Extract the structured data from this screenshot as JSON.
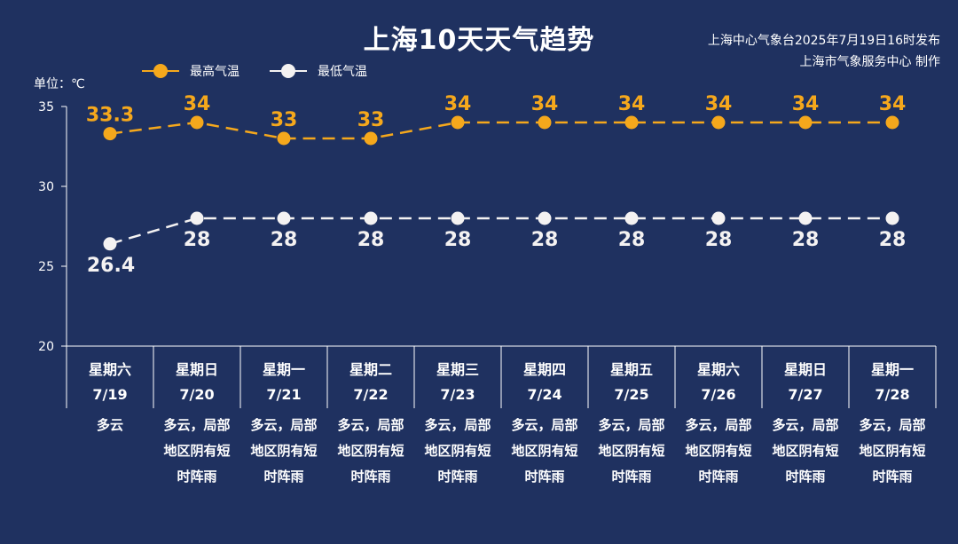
{
  "title": "上海10天天气趋势",
  "source_lines": [
    "上海中心气象台2025年7月19日16时发布",
    "上海市气象服务中心 制作"
  ],
  "unit": "单位：℃",
  "colors": {
    "background": "#1f3160",
    "high": "#f5a81c",
    "low": "#f4f2f2",
    "axis": "#ffffff"
  },
  "chart_data": {
    "type": "line",
    "title": "上海10天天气趋势",
    "ylabel": "单位：℃",
    "ylim": [
      20,
      35
    ],
    "yticks": [
      20,
      25,
      30,
      35
    ],
    "grid": false,
    "legend": "top-left",
    "categories": [
      {
        "weekday": "星期六",
        "date": "7/19",
        "weather": "多云"
      },
      {
        "weekday": "星期日",
        "date": "7/20",
        "weather": "多云，局部地区阴有短时阵雨"
      },
      {
        "weekday": "星期一",
        "date": "7/21",
        "weather": "多云，局部地区阴有短时阵雨"
      },
      {
        "weekday": "星期二",
        "date": "7/22",
        "weather": "多云，局部地区阴有短时阵雨"
      },
      {
        "weekday": "星期三",
        "date": "7/23",
        "weather": "多云，局部地区阴有短时阵雨"
      },
      {
        "weekday": "星期四",
        "date": "7/24",
        "weather": "多云，局部地区阴有短时阵雨"
      },
      {
        "weekday": "星期五",
        "date": "7/25",
        "weather": "多云，局部地区阴有短时阵雨"
      },
      {
        "weekday": "星期六",
        "date": "7/26",
        "weather": "多云，局部地区阴有短时阵雨"
      },
      {
        "weekday": "星期日",
        "date": "7/27",
        "weather": "多云，局部地区阴有短时阵雨"
      },
      {
        "weekday": "星期一",
        "date": "7/28",
        "weather": "多云，局部地区阴有短时阵雨"
      }
    ],
    "series": [
      {
        "name": "最高气温",
        "values": [
          33.3,
          34,
          33,
          33,
          34,
          34,
          34,
          34,
          34,
          34
        ],
        "color": "#f5a81c"
      },
      {
        "name": "最低气温",
        "values": [
          26.4,
          28,
          28,
          28,
          28,
          28,
          28,
          28,
          28,
          28
        ],
        "color": "#f4f2f2"
      }
    ]
  }
}
